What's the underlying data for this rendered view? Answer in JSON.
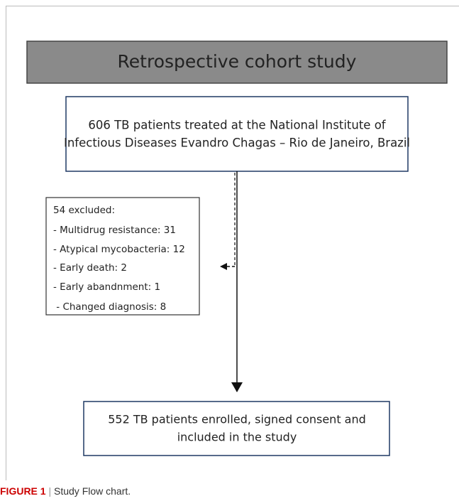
{
  "header": {
    "title": "Retrospective cohort study"
  },
  "top_box": {
    "lines": [
      "606 TB patients treated at the National Institute of",
      "Infectious Diseases Evandro Chagas – Rio de Janeiro, Brazil"
    ]
  },
  "exclusion_box": {
    "lines": [
      "54 excluded:",
      "- Multidrug resistance: 31",
      "- Atypical mycobacteria: 12",
      "- Early death: 2",
      "- Early abandnment: 1",
      " - Changed diagnosis: 8"
    ]
  },
  "bottom_box": {
    "lines": [
      "552 TB patients enrolled, signed consent and",
      "included in the study"
    ]
  },
  "caption": {
    "label": "FIGURE 1",
    "separator": "|",
    "text": "Study Flow chart."
  }
}
